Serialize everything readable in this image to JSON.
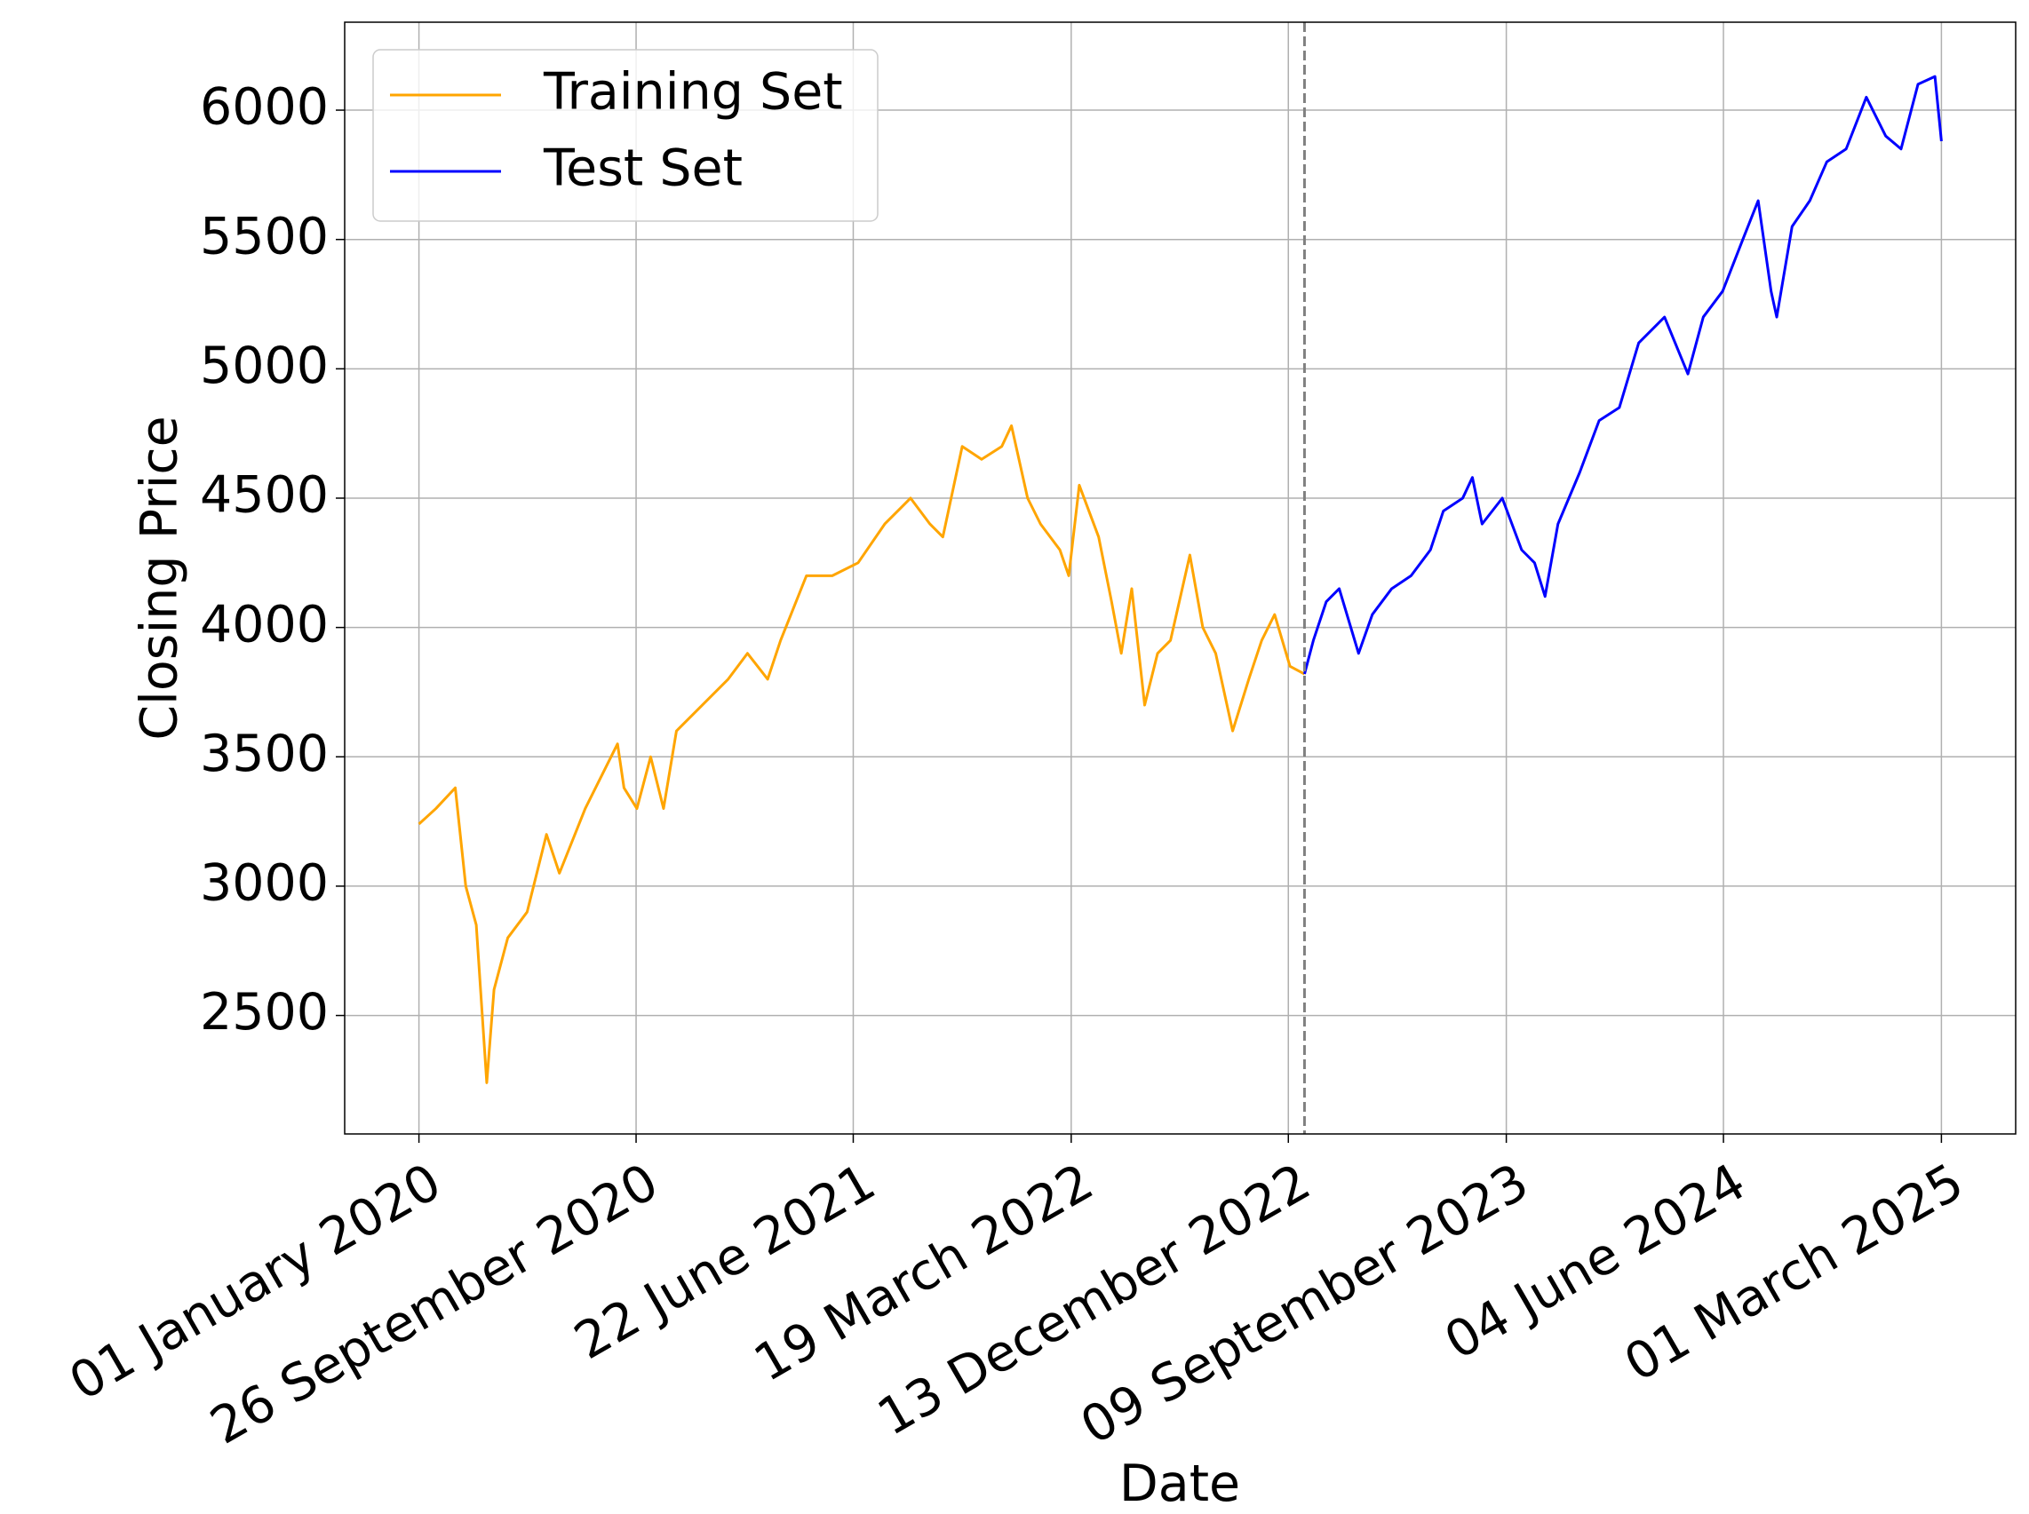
{
  "chart_data": {
    "type": "line",
    "x_label": "Date",
    "y_label": "Closing Price",
    "xlim": [
      "2019-10-01",
      "2025-06-01"
    ],
    "ylim": [
      2042,
      6340
    ],
    "xticks": [
      {
        "value": "2020-01-01",
        "label": "01 January 2020"
      },
      {
        "value": "2020-09-26",
        "label": "26 September 2020"
      },
      {
        "value": "2021-06-22",
        "label": "22 June 2021"
      },
      {
        "value": "2022-03-19",
        "label": "19 March 2022"
      },
      {
        "value": "2022-12-13",
        "label": "13 December 2022"
      },
      {
        "value": "2023-09-09",
        "label": "09 September 2023"
      },
      {
        "value": "2024-06-04",
        "label": "04 June 2024"
      },
      {
        "value": "2025-03-01",
        "label": "01 March 2025"
      }
    ],
    "yticks": [
      2500,
      3000,
      3500,
      4000,
      4500,
      5000,
      5500,
      6000
    ],
    "grid": true,
    "legend": "upper left",
    "vline": "2023-01-02",
    "vline_color": "#808080",
    "series": [
      {
        "name": "Training Set",
        "color": "#ffa500",
        "x": [
          "2020-01-01",
          "2020-01-22",
          "2020-02-15",
          "2020-02-28",
          "2020-03-12",
          "2020-03-25",
          "2020-04-03",
          "2020-04-20",
          "2020-05-14",
          "2020-06-07",
          "2020-06-23",
          "2020-07-25",
          "2020-09-03",
          "2020-09-11",
          "2020-09-27",
          "2020-10-14",
          "2020-10-30",
          "2020-11-15",
          "2020-12-17",
          "2021-01-18",
          "2021-02-11",
          "2021-03-08",
          "2021-03-24",
          "2021-04-25",
          "2021-05-27",
          "2021-06-28",
          "2021-07-31",
          "2021-09-01",
          "2021-09-25",
          "2021-10-11",
          "2021-11-04",
          "2021-11-28",
          "2021-12-23",
          "2022-01-04",
          "2022-01-24",
          "2022-02-09",
          "2022-03-05",
          "2022-03-16",
          "2022-03-29",
          "2022-04-22",
          "2022-05-08",
          "2022-05-20",
          "2022-06-02",
          "2022-06-18",
          "2022-07-04",
          "2022-07-20",
          "2022-08-13",
          "2022-08-29",
          "2022-09-14",
          "2022-10-05",
          "2022-10-25",
          "2022-11-10",
          "2022-11-26",
          "2022-12-15",
          "2023-01-02"
        ],
        "values": [
          3240,
          3300,
          3380,
          3000,
          2850,
          2240,
          2600,
          2800,
          2900,
          3200,
          3050,
          3300,
          3550,
          3380,
          3300,
          3500,
          3300,
          3600,
          3700,
          3800,
          3900,
          3800,
          3950,
          4200,
          4200,
          4250,
          4400,
          4500,
          4400,
          4350,
          4700,
          4650,
          4700,
          4780,
          4500,
          4400,
          4300,
          4200,
          4550,
          4350,
          4100,
          3900,
          4150,
          3700,
          3900,
          3950,
          4280,
          4000,
          3900,
          3600,
          3800,
          3950,
          4050,
          3850,
          3820
        ]
      },
      {
        "name": "Test Set",
        "color": "#0000ff",
        "x": [
          "2023-01-02",
          "2023-01-13",
          "2023-01-29",
          "2023-02-14",
          "2023-03-10",
          "2023-03-27",
          "2023-04-20",
          "2023-05-14",
          "2023-06-07",
          "2023-06-23",
          "2023-07-17",
          "2023-07-29",
          "2023-08-10",
          "2023-09-04",
          "2023-09-28",
          "2023-10-14",
          "2023-10-27",
          "2023-11-12",
          "2023-12-09",
          "2024-01-02",
          "2024-01-27",
          "2024-02-20",
          "2024-03-23",
          "2024-04-21",
          "2024-05-10",
          "2024-06-03",
          "2024-06-28",
          "2024-07-17",
          "2024-08-02",
          "2024-08-09",
          "2024-08-28",
          "2024-09-19",
          "2024-10-10",
          "2024-11-03",
          "2024-11-28",
          "2024-12-22",
          "2025-01-10",
          "2025-01-31",
          "2025-02-21",
          "2025-03-01"
        ],
        "values": [
          3820,
          3950,
          4100,
          4150,
          3900,
          4050,
          4150,
          4200,
          4300,
          4450,
          4500,
          4580,
          4400,
          4500,
          4300,
          4250,
          4120,
          4400,
          4600,
          4800,
          4850,
          5100,
          5200,
          4980,
          5200,
          5300,
          5500,
          5650,
          5300,
          5200,
          5550,
          5650,
          5800,
          5850,
          6050,
          5900,
          5850,
          6100,
          6130,
          5880
        ]
      }
    ]
  }
}
